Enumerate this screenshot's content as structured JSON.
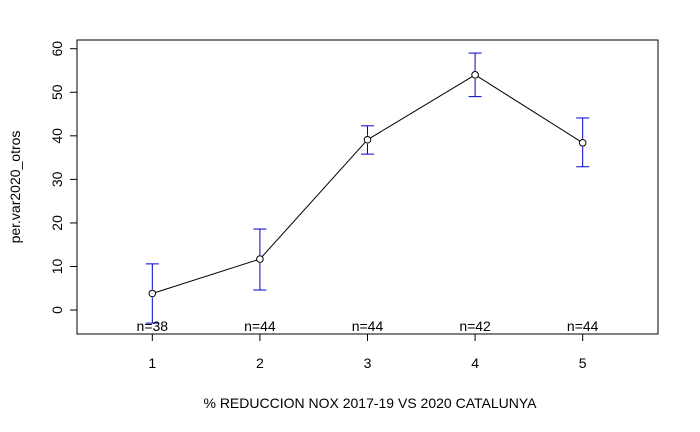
{
  "chart_data": {
    "type": "line",
    "xlabel": "% REDUCCION NOX 2017-19 VS 2020 CATALUNYA",
    "ylabel": "per.var2020_otros",
    "xlim": [
      0.3,
      5.7
    ],
    "ylim": [
      -5.5,
      62
    ],
    "x_ticks": [
      "1",
      "2",
      "3",
      "4",
      "5"
    ],
    "y_ticks": [
      "0",
      "10",
      "20",
      "30",
      "40",
      "50",
      "60"
    ],
    "grid": false,
    "colors": {
      "line": "#000000",
      "error_bars": "#0000cd"
    },
    "points": [
      {
        "x": 1,
        "y": 3.8,
        "lower": -3.0,
        "upper": 10.6,
        "n_label": "n=38"
      },
      {
        "x": 2,
        "y": 11.7,
        "lower": 4.6,
        "upper": 18.6,
        "n_label": "n=44"
      },
      {
        "x": 3,
        "y": 39.1,
        "lower": 35.8,
        "upper": 42.3,
        "n_label": "n=44"
      },
      {
        "x": 4,
        "y": 54.0,
        "lower": 49.0,
        "upper": 59.0,
        "n_label": "n=42"
      },
      {
        "x": 5,
        "y": 38.4,
        "lower": 32.9,
        "upper": 44.1,
        "n_label": "n=44"
      }
    ]
  }
}
